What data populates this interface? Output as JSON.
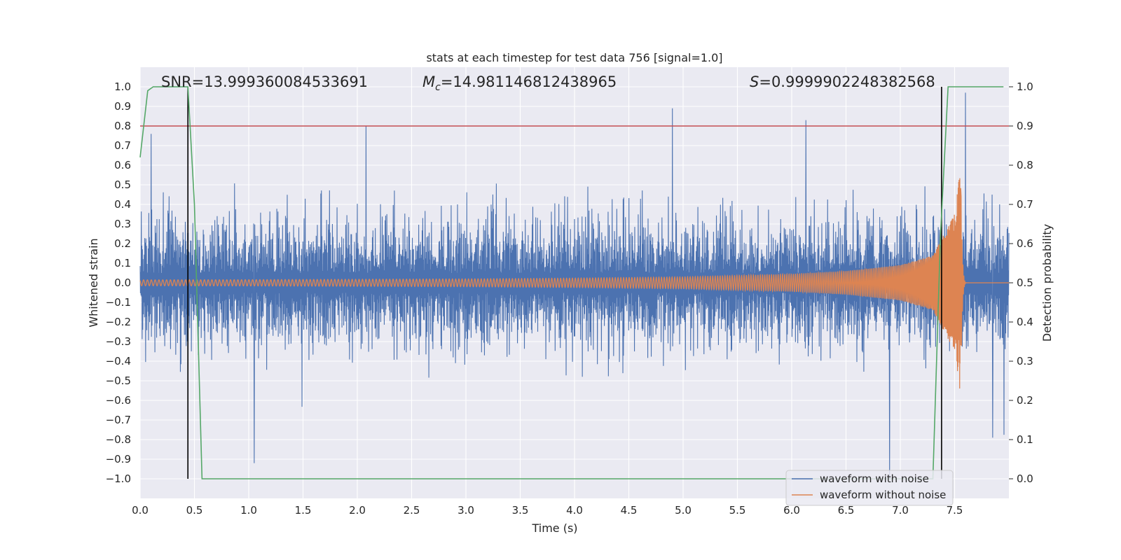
{
  "chart_data": {
    "type": "line",
    "title": "stats at each timestep for test data 756 [signal=1.0]",
    "xlabel": "Time (s)",
    "ylabel": "Whitened strain",
    "y2label": "Detection probability",
    "xlim": [
      0.0,
      8.0
    ],
    "ylim": [
      -1.1,
      1.1
    ],
    "y2lim": [
      -0.05,
      1.05
    ],
    "x_ticks": [
      "0.0",
      "0.5",
      "1.0",
      "1.5",
      "2.0",
      "2.5",
      "3.0",
      "3.5",
      "4.0",
      "4.5",
      "5.0",
      "5.5",
      "6.0",
      "6.5",
      "7.0",
      "7.5"
    ],
    "y_ticks": [
      "1.0",
      "0.9",
      "0.8",
      "0.7",
      "0.6",
      "0.5",
      "0.4",
      "0.3",
      "0.2",
      "0.1",
      "0.0",
      "−0.1",
      "−0.2",
      "−0.3",
      "−0.4",
      "−0.5",
      "−0.6",
      "−0.7",
      "−0.8",
      "−0.9",
      "−1.0"
    ],
    "y2_ticks": [
      "1.0",
      "0.9",
      "0.8",
      "0.7",
      "0.6",
      "0.5",
      "0.4",
      "0.3",
      "0.2",
      "0.1",
      "0.0"
    ],
    "annotations": {
      "snr": "SNR=13.999360084533691",
      "mc_symbol": "M",
      "mc_sub": "c",
      "mc_value": "=14.981146812438965",
      "s_symbol": "S",
      "s_value": "=0.9999902248382568"
    },
    "legend": {
      "position": "lower-right",
      "entries": [
        "waveform with noise",
        "waveform without noise"
      ]
    },
    "series": [
      {
        "name": "waveform with noise",
        "color": "#4c72b0",
        "description": "Gaussian-like whitened noise, typical amplitude about ±0.45 with spikes up to 0.95",
        "typical_amplitude": 0.45,
        "peaks": [
          [
            0.1,
            0.76
          ],
          [
            2.08,
            0.8
          ],
          [
            4.9,
            0.89
          ],
          [
            6.13,
            0.83
          ],
          [
            7.6,
            0.97
          ],
          [
            1.05,
            -0.92
          ],
          [
            6.9,
            -1.0
          ],
          [
            7.85,
            -0.79
          ]
        ]
      },
      {
        "name": "waveform without noise",
        "color": "#dd8452",
        "description": "chirp signal, amplitude grows toward merger near t=7.55 s then rings down",
        "x": [
          0.0,
          1.0,
          2.0,
          3.0,
          4.0,
          5.0,
          6.0,
          6.5,
          7.0,
          7.3,
          7.5,
          7.55,
          7.6,
          8.0
        ],
        "amplitude": [
          0.015,
          0.016,
          0.018,
          0.02,
          0.024,
          0.03,
          0.045,
          0.06,
          0.09,
          0.14,
          0.35,
          0.57,
          0.01,
          0.0
        ]
      },
      {
        "name": "detection probability",
        "color": "#55a868",
        "axis": "right",
        "x": [
          0.0,
          0.07,
          0.12,
          0.2,
          0.44,
          0.5,
          0.57,
          7.3,
          7.37,
          7.44,
          7.5,
          7.95
        ],
        "values": [
          0.82,
          0.99,
          1.0,
          1.0,
          1.0,
          0.7,
          0.0,
          0.0,
          0.62,
          1.0,
          1.0,
          1.0
        ]
      }
    ],
    "hlines": [
      {
        "name": "threshold",
        "axis": "right",
        "value": 0.9,
        "color": "#c44e52"
      }
    ],
    "vlines": [
      {
        "name": "detection-start",
        "x": 0.44,
        "y2_range": [
          0.0,
          1.0
        ],
        "color": "#000000"
      },
      {
        "name": "detection-end",
        "x": 7.38,
        "y2_range": [
          0.0,
          1.0
        ],
        "color": "#000000"
      }
    ],
    "grid": true,
    "background": "#eaeaf2"
  }
}
